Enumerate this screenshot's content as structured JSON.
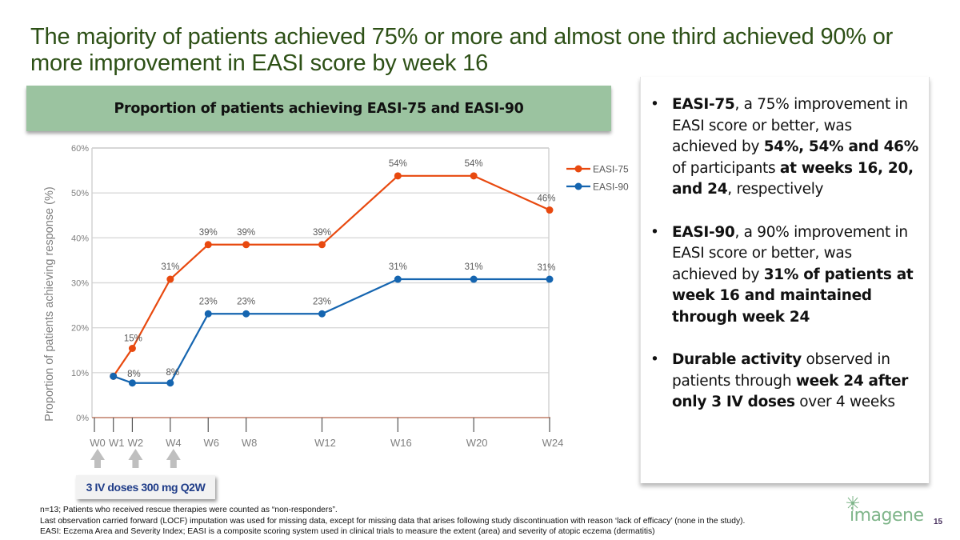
{
  "slide": {
    "title": "The majority of patients achieved 75% or more and almost one third achieved 90% or more improvement in EASI score by week 16",
    "page_number": "15",
    "logo_text": "imagene",
    "logo_icon": "dandelion-icon"
  },
  "chart_banner": "Proportion of patients achieving EASI-75 and EASI-90",
  "dose_annotation": {
    "label": "3 IV doses 300 mg Q2W",
    "arrow_weeks": [
      "W0",
      "W2",
      "W4"
    ],
    "icon": "arrow-up-icon"
  },
  "bullets": [
    {
      "parts": [
        {
          "text": "EASI-75",
          "bold": true
        },
        {
          "text": ", a 75% improvement in EASI score or better, was achieved by ",
          "bold": false
        },
        {
          "text": "54%, 54% and 46%",
          "bold": true
        },
        {
          "text": " of participants ",
          "bold": false
        },
        {
          "text": "at weeks 16, 20, and 24",
          "bold": true
        },
        {
          "text": ", respectively",
          "bold": false
        }
      ]
    },
    {
      "parts": [
        {
          "text": "EASI-90",
          "bold": true
        },
        {
          "text": ", a 90% improvement in EASI score or better, was achieved by ",
          "bold": false
        },
        {
          "text": "31% of patients at week 16 and maintained through week 24",
          "bold": true
        }
      ]
    },
    {
      "parts": [
        {
          "text": "Durable activity",
          "bold": true
        },
        {
          "text": " observed in patients through ",
          "bold": false
        },
        {
          "text": "week 24 after only 3 IV doses",
          "bold": true
        },
        {
          "text": " over 4 weeks",
          "bold": false
        }
      ]
    }
  ],
  "footnotes": [
    "n=13; Patients who received rescue therapies were counted as “non-responders”.",
    "Last observation carried forward (LOCF) imputation was used for missing data, except for missing data that arises following study discontinuation with reason ‘lack of efficacy’ (none in the study).",
    "EASI: Eczema Area and Severity Index; EASI is a composite scoring system used in clinical trials to measure the extent (area) and severity of atopic eczema (dermatitis)"
  ],
  "chart_data": {
    "type": "line",
    "title": "Proportion of patients achieving EASI-75 and EASI-90",
    "xlabel": "",
    "ylabel": "Proportion of patients achieving response (%)",
    "x_ticks": [
      "W0",
      "W1",
      "W2",
      "W4",
      "W6",
      "W8",
      "W12",
      "W16",
      "W20",
      "W24"
    ],
    "x_weeks": [
      0,
      1,
      2,
      4,
      6,
      8,
      12,
      16,
      20,
      24
    ],
    "x_range": [
      0,
      24
    ],
    "y_ticks": [
      "0%",
      "10%",
      "20%",
      "30%",
      "40%",
      "50%",
      "60%"
    ],
    "ylim": [
      0,
      60
    ],
    "grid": true,
    "legend": "right",
    "series": [
      {
        "name": "EASI-75",
        "color": "#e8490f",
        "weeks": [
          1,
          2,
          4,
          6,
          8,
          12,
          16,
          20,
          24
        ],
        "values": [
          9.2,
          15.4,
          30.8,
          38.5,
          38.5,
          38.5,
          53.8,
          53.8,
          46.2
        ],
        "labels": [
          "",
          "15%",
          "31%",
          "39%",
          "39%",
          "39%",
          "54%",
          "54%",
          "46%"
        ]
      },
      {
        "name": "EASI-90",
        "color": "#1565b0",
        "weeks": [
          1,
          2,
          4,
          6,
          8,
          12,
          16,
          20,
          24
        ],
        "values": [
          9.2,
          7.7,
          7.7,
          23.1,
          23.1,
          23.1,
          30.8,
          30.8,
          30.8
        ],
        "labels": [
          "",
          "8%",
          "8%",
          "23%",
          "23%",
          "23%",
          "31%",
          "31%",
          "31%"
        ]
      }
    ]
  }
}
